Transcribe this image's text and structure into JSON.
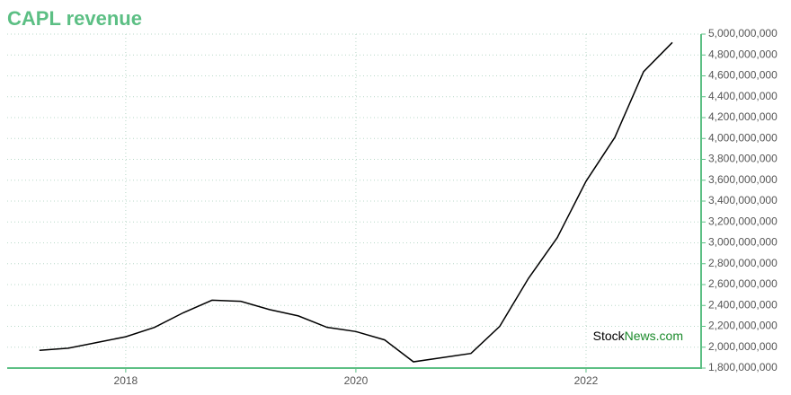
{
  "chart_data": {
    "type": "line",
    "title": "CAPL revenue",
    "x": [
      2017.25,
      2017.5,
      2017.75,
      2018,
      2018.25,
      2018.5,
      2018.75,
      2019,
      2019.25,
      2019.5,
      2019.75,
      2020,
      2020.25,
      2020.5,
      2020.75,
      2021,
      2021.25,
      2021.5,
      2021.75,
      2022,
      2022.25,
      2022.5,
      2022.75
    ],
    "series": [
      {
        "name": "revenue",
        "color": "#000000",
        "values": [
          1970000000,
          1990000000,
          2045000000,
          2100000000,
          2190000000,
          2330000000,
          2450000000,
          2440000000,
          2360000000,
          2300000000,
          2190000000,
          2150000000,
          2070000000,
          1860000000,
          1900000000,
          1940000000,
          2200000000,
          2660000000,
          3050000000,
          3590000000,
          4010000000,
          4640000000,
          4920000000
        ]
      }
    ],
    "xlim": [
      2016.97,
      2023.0
    ],
    "xticks": [
      2018,
      2020,
      2022
    ],
    "ylim": [
      1800000000,
      5000000000
    ],
    "yticks": [
      {
        "value": 1800000000,
        "label": "1,800,000,000"
      },
      {
        "value": 2000000000,
        "label": "2,000,000,000"
      },
      {
        "value": 2200000000,
        "label": "2,200,000,000"
      },
      {
        "value": 2400000000,
        "label": "2,400,000,000"
      },
      {
        "value": 2600000000,
        "label": "2,600,000,000"
      },
      {
        "value": 2800000000,
        "label": "2,800,000,000"
      },
      {
        "value": 3000000000,
        "label": "3,000,000,000"
      },
      {
        "value": 3200000000,
        "label": "3,200,000,000"
      },
      {
        "value": 3400000000,
        "label": "3,400,000,000"
      },
      {
        "value": 3600000000,
        "label": "3,600,000,000"
      },
      {
        "value": 3800000000,
        "label": "3,800,000,000"
      },
      {
        "value": 4000000000,
        "label": "4,000,000,000"
      },
      {
        "value": 4200000000,
        "label": "4,200,000,000"
      },
      {
        "value": 4400000000,
        "label": "4,400,000,000"
      },
      {
        "value": 4600000000,
        "label": "4,600,000,000"
      },
      {
        "value": 4800000000,
        "label": "4,800,000,000"
      },
      {
        "value": 5000000000,
        "label": "5,000,000,000"
      }
    ],
    "grid": true,
    "axis_color": "#5cbf84",
    "watermark": [
      "Stock",
      "News.com"
    ]
  }
}
